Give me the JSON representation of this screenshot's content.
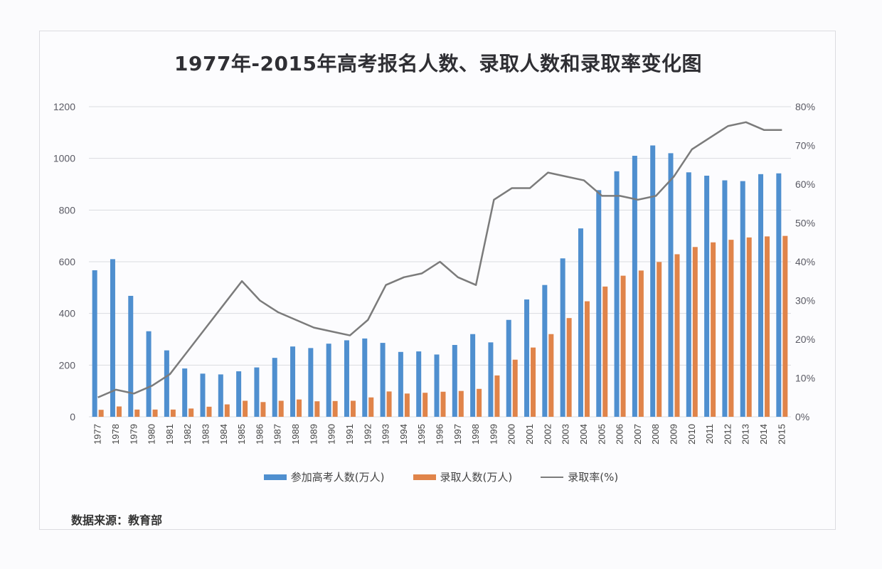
{
  "chart_data": {
    "type": "bar",
    "title": "1977年-2015年高考报名人数、录取人数和录取率变化图",
    "xlabel": "",
    "ylabel": "",
    "categories": [
      "1977",
      "1978",
      "1979",
      "1980",
      "1981",
      "1982",
      "1983",
      "1984",
      "1985",
      "1986",
      "1987",
      "1988",
      "1989",
      "1990",
      "1991",
      "1992",
      "1993",
      "1994",
      "1995",
      "1996",
      "1997",
      "1998",
      "1999",
      "2000",
      "2001",
      "2002",
      "2003",
      "2004",
      "2005",
      "2006",
      "2007",
      "2008",
      "2009",
      "2010",
      "2011",
      "2012",
      "2013",
      "2014",
      "2015"
    ],
    "ylim": [
      0,
      1200
    ],
    "yticks": [
      "0",
      "200",
      "400",
      "600",
      "800",
      "1000",
      "1200"
    ],
    "y2lim": [
      0,
      80
    ],
    "y2ticks": [
      "0%",
      "10%",
      "20%",
      "30%",
      "40%",
      "50%",
      "60%",
      "70%",
      "80%"
    ],
    "grid": true,
    "legend_position": "bottom",
    "series": [
      {
        "name": "参加高考人数(万人)",
        "type": "bar",
        "axis": "left",
        "color": "#4f8fcf",
        "values": [
          567,
          610,
          468,
          331,
          257,
          187,
          167,
          164,
          176,
          191,
          228,
          272,
          266,
          283,
          296,
          303,
          286,
          251,
          253,
          241,
          278,
          320,
          288,
          375,
          454,
          510,
          613,
          729,
          877,
          950,
          1010,
          1050,
          1020,
          946,
          933,
          915,
          912,
          939,
          942
        ]
      },
      {
        "name": "录取人数(万人)",
        "type": "bar",
        "axis": "left",
        "color": "#e0844a",
        "values": [
          27,
          40,
          28,
          28,
          28,
          32,
          39,
          48,
          62,
          57,
          62,
          67,
          60,
          61,
          62,
          75,
          98,
          90,
          93,
          97,
          100,
          108,
          160,
          221,
          268,
          320,
          382,
          447,
          504,
          546,
          566,
          599,
          629,
          657,
          675,
          685,
          694,
          698,
          700
        ]
      },
      {
        "name": "录取率(%)",
        "type": "line",
        "axis": "right",
        "color": "#7b7b7b",
        "values": [
          5,
          7,
          6,
          8,
          11,
          17,
          23,
          29,
          35,
          30,
          27,
          25,
          23,
          22,
          21,
          25,
          34,
          36,
          37,
          40,
          36,
          34,
          56,
          59,
          59,
          63,
          62,
          61,
          57,
          57,
          56,
          57,
          62,
          69,
          72,
          75,
          76,
          74,
          74
        ]
      }
    ],
    "source_note": "数据来源：教育部"
  }
}
